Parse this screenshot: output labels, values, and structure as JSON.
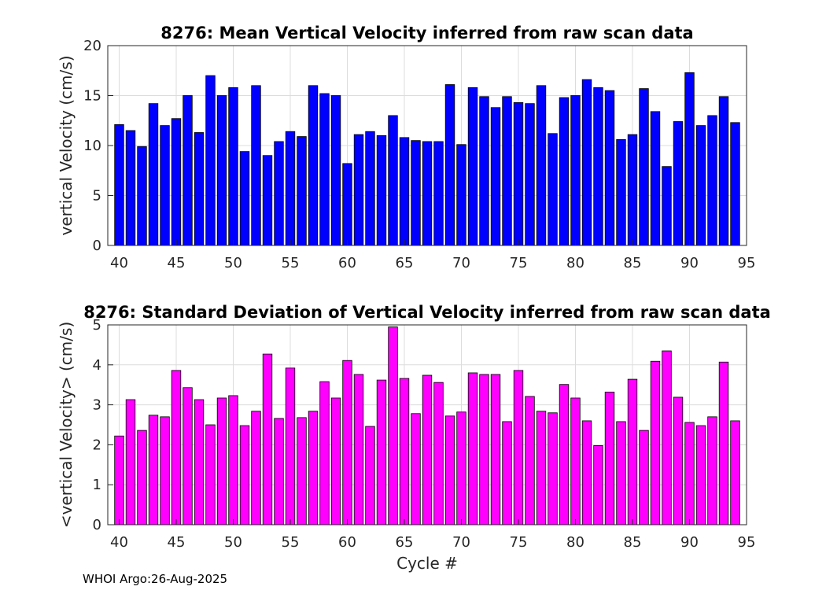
{
  "footer": "WHOI Argo:26-Aug-2025",
  "chart_data": [
    {
      "type": "bar",
      "title": "8276: Mean Vertical Velocity inferred from raw scan data",
      "xlabel": "",
      "ylabel": "vertical Velocity (cm/s)",
      "xlim": [
        39,
        95
      ],
      "ylim": [
        0,
        20
      ],
      "xticks": [
        40,
        45,
        50,
        55,
        60,
        65,
        70,
        75,
        80,
        85,
        90,
        95
      ],
      "yticks": [
        0,
        5,
        10,
        15,
        20
      ],
      "grid": true,
      "bar_color": "#0000ff",
      "x": [
        40,
        41,
        42,
        43,
        44,
        45,
        46,
        47,
        48,
        49,
        50,
        51,
        52,
        53,
        54,
        55,
        56,
        57,
        58,
        59,
        60,
        61,
        62,
        63,
        64,
        65,
        66,
        67,
        68,
        69,
        70,
        71,
        72,
        73,
        74,
        75,
        76,
        77,
        78,
        79,
        80,
        81,
        82,
        83,
        84,
        85,
        86,
        87,
        88,
        89,
        90,
        91,
        92,
        93,
        94
      ],
      "values": [
        12.1,
        11.5,
        9.9,
        14.2,
        12.0,
        12.7,
        15.0,
        11.3,
        17.0,
        15.0,
        15.8,
        9.4,
        16.0,
        9.0,
        10.4,
        11.4,
        10.9,
        16.0,
        15.2,
        15.0,
        8.2,
        11.1,
        11.4,
        11.0,
        13.0,
        10.8,
        10.5,
        10.4,
        10.4,
        16.1,
        10.1,
        15.8,
        14.9,
        13.8,
        14.9,
        14.3,
        14.2,
        16.0,
        11.2,
        14.8,
        15.0,
        16.6,
        15.8,
        15.5,
        10.6,
        11.1,
        15.7,
        13.4,
        7.9,
        12.4,
        17.3,
        12.0,
        13.0,
        14.9,
        12.3
      ]
    },
    {
      "type": "bar",
      "title": "8276: Standard Deviation of Vertical Velocity inferred from raw scan data",
      "xlabel": "Cycle #",
      "ylabel": "<vertical Velocity> (cm/s)",
      "xlim": [
        39,
        95
      ],
      "ylim": [
        0,
        5
      ],
      "xticks": [
        40,
        45,
        50,
        55,
        60,
        65,
        70,
        75,
        80,
        85,
        90,
        95
      ],
      "yticks": [
        0,
        1,
        2,
        3,
        4,
        5
      ],
      "grid": true,
      "bar_color": "#ff00ff",
      "x": [
        40,
        41,
        42,
        43,
        44,
        45,
        46,
        47,
        48,
        49,
        50,
        51,
        52,
        53,
        54,
        55,
        56,
        57,
        58,
        59,
        60,
        61,
        62,
        63,
        64,
        65,
        66,
        67,
        68,
        69,
        70,
        71,
        72,
        73,
        74,
        75,
        76,
        77,
        78,
        79,
        80,
        81,
        82,
        83,
        84,
        85,
        86,
        87,
        88,
        89,
        90,
        91,
        92,
        93,
        94
      ],
      "values": [
        2.22,
        3.13,
        2.36,
        2.74,
        2.7,
        3.86,
        3.43,
        3.13,
        2.5,
        3.17,
        3.23,
        2.48,
        2.84,
        4.27,
        2.66,
        3.92,
        2.68,
        2.84,
        3.58,
        3.17,
        4.11,
        3.76,
        2.46,
        3.62,
        4.95,
        3.66,
        2.78,
        3.74,
        3.56,
        2.72,
        2.82,
        3.8,
        3.76,
        3.76,
        2.58,
        3.86,
        3.21,
        2.84,
        2.8,
        3.51,
        3.17,
        2.6,
        1.98,
        3.32,
        2.58,
        3.64,
        2.36,
        4.09,
        4.35,
        3.19,
        2.56,
        2.48,
        2.7,
        4.07,
        2.6
      ]
    }
  ]
}
